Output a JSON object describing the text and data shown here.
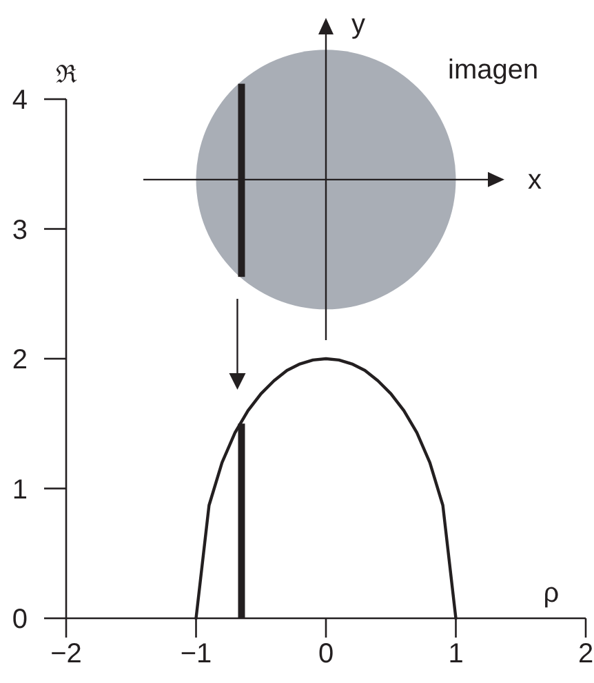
{
  "chart_data": {
    "type": "line",
    "xlabel": "ρ",
    "ylabel": "ℜ",
    "annotations": [
      "imagen",
      "x",
      "y"
    ],
    "xlim": [
      -2,
      2
    ],
    "ylim": [
      0,
      4
    ],
    "xticks": [
      -2,
      -1,
      0,
      1,
      2
    ],
    "yticks": [
      0,
      1,
      2,
      3,
      4
    ],
    "series": [
      {
        "color": "#231f20",
        "x": [
          -1,
          -0.9,
          -0.8,
          -0.7,
          -0.6,
          -0.5,
          -0.4,
          -0.3,
          -0.2,
          -0.1,
          0,
          0.1,
          0.2,
          0.3,
          0.4,
          0.5,
          0.6,
          0.7,
          0.8,
          0.9,
          1
        ],
        "values": [
          0,
          0.87,
          1.2,
          1.43,
          1.6,
          1.73,
          1.83,
          1.91,
          1.96,
          1.99,
          2,
          1.99,
          1.96,
          1.91,
          1.83,
          1.73,
          1.6,
          1.43,
          1.2,
          0.87,
          0
        ]
      },
      {
        "type": "bar",
        "color": "#231f20",
        "x": [
          -0.65
        ],
        "values": [
          1.5
        ]
      }
    ]
  }
}
